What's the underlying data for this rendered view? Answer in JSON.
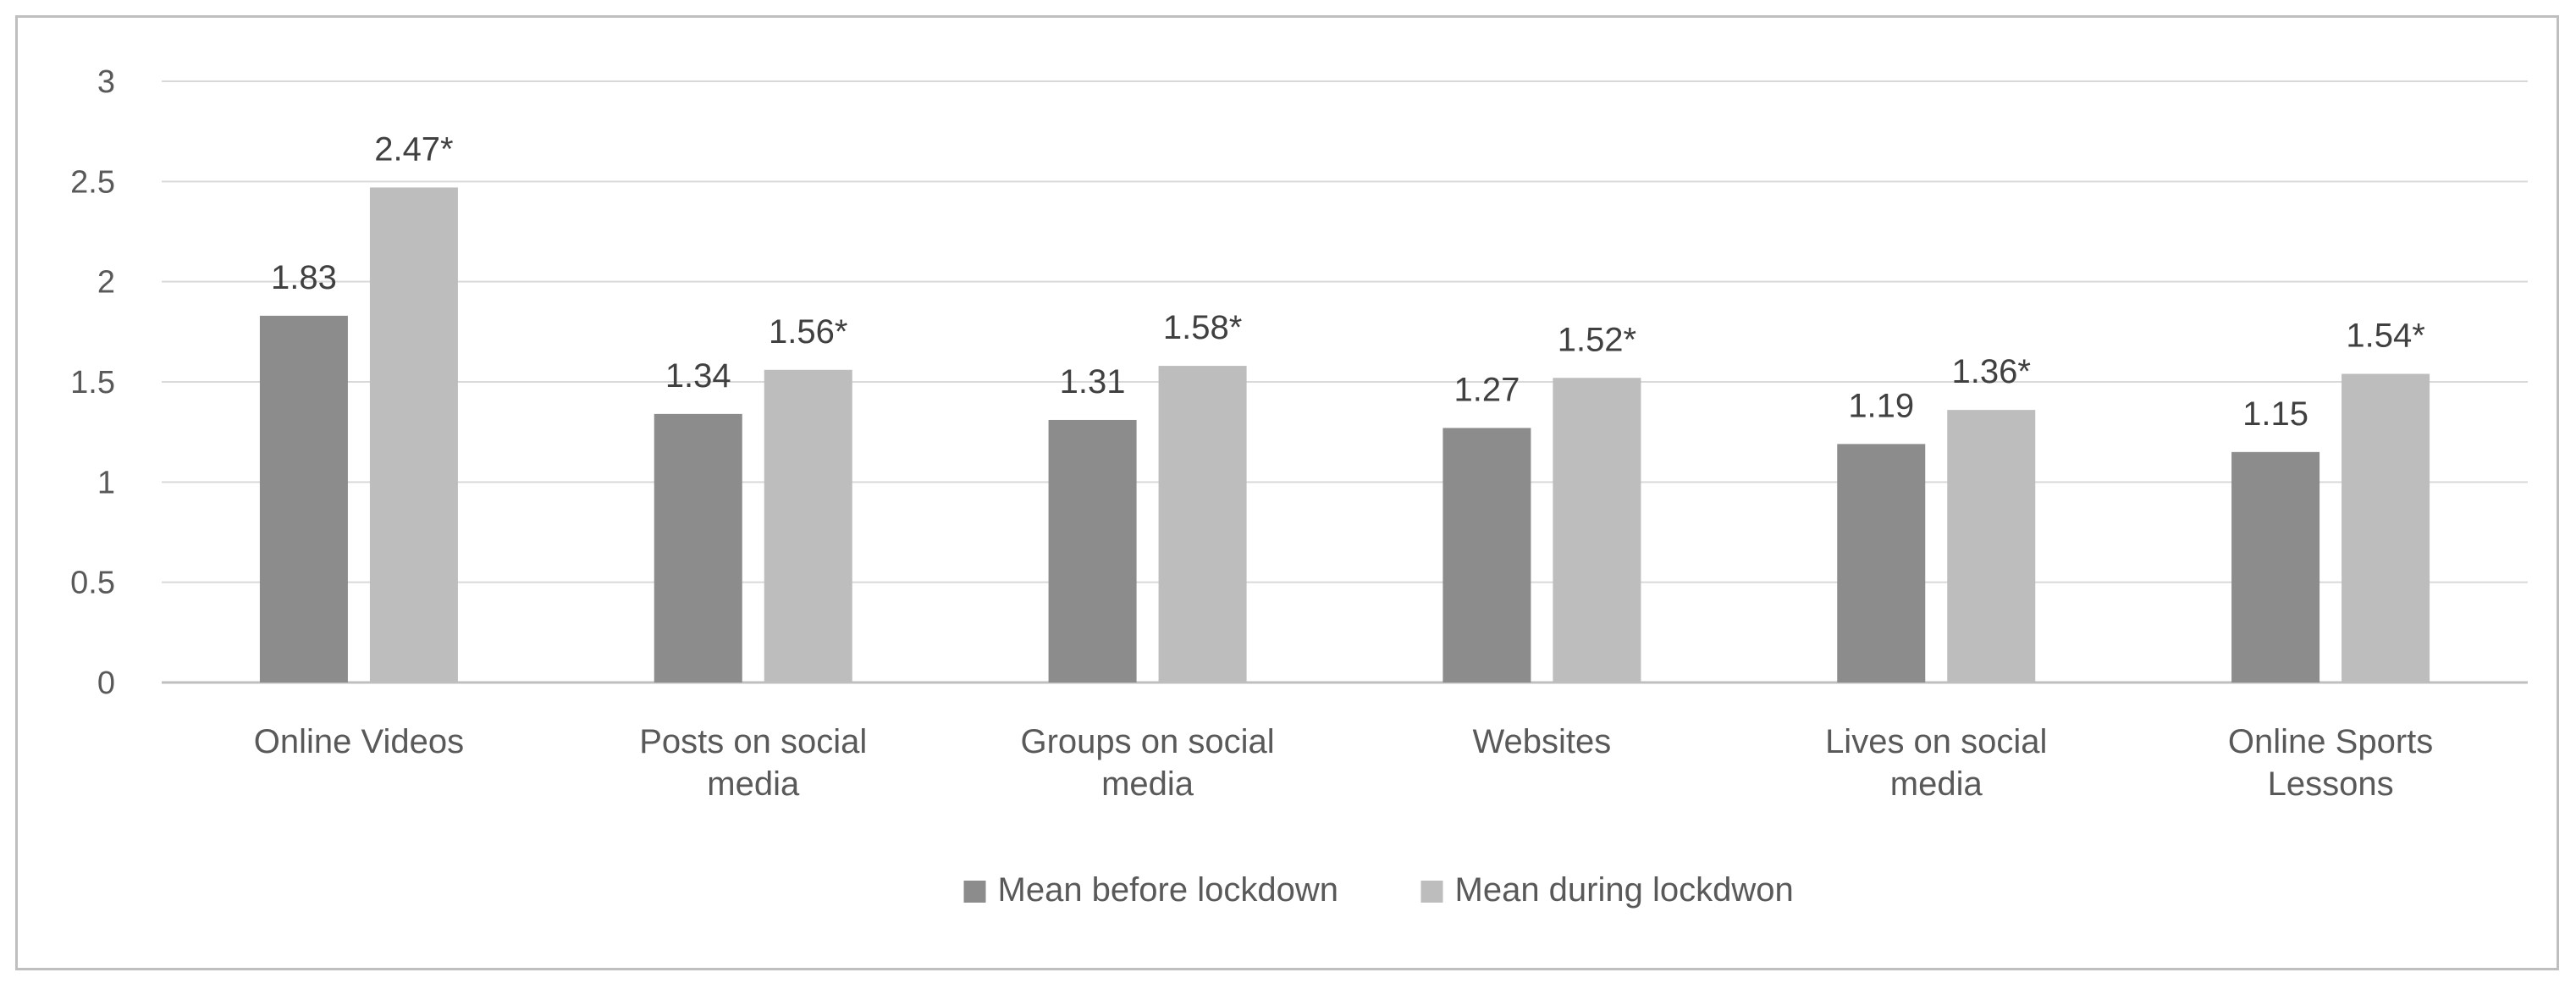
{
  "chart_data": {
    "type": "bar",
    "title": "",
    "xlabel": "",
    "ylabel": "",
    "ylim": [
      0,
      3
    ],
    "yticks": [
      0,
      0.5,
      1,
      1.5,
      2,
      2.5,
      3
    ],
    "ytick_labels": [
      "0",
      "0.5",
      "1",
      "1.5",
      "2",
      "2.5",
      "3"
    ],
    "grid": true,
    "legend_position": "bottom",
    "categories": [
      [
        "Online Videos"
      ],
      [
        "Posts on social",
        "media"
      ],
      [
        "Groups on social",
        "media"
      ],
      [
        "Websites"
      ],
      [
        "Lives on social",
        "media"
      ],
      [
        "Online Sports",
        "Lessons"
      ]
    ],
    "series": [
      {
        "name": "Mean before lockdown",
        "color": "#8c8c8c",
        "values": [
          1.83,
          1.34,
          1.31,
          1.27,
          1.19,
          1.15
        ],
        "labels": [
          "1.83",
          "1.34",
          "1.31",
          "1.27",
          "1.19",
          "1.15"
        ]
      },
      {
        "name": "Mean during lockdwon",
        "color": "#bdbdbd",
        "values": [
          2.47,
          1.56,
          1.58,
          1.52,
          1.36,
          1.54
        ],
        "labels": [
          "2.47*",
          "1.56*",
          "1.58*",
          "1.52*",
          "1.36*",
          "1.54*"
        ]
      }
    ],
    "gridline_color": "#d9d9d9",
    "axis_color": "#bfbfbf"
  }
}
